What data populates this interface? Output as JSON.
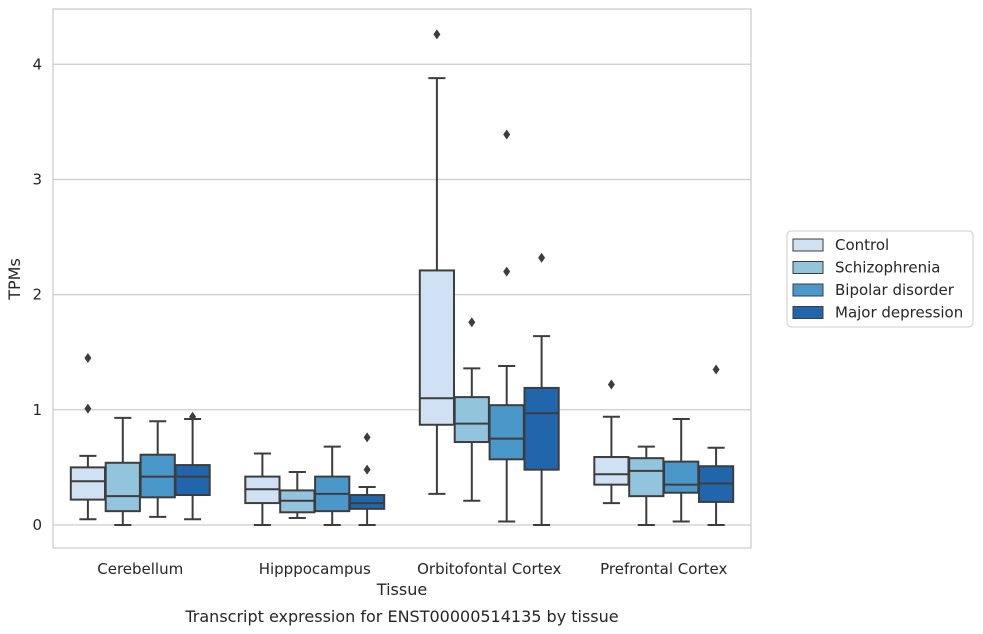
{
  "chart_data": {
    "type": "boxplot",
    "title": "",
    "caption": "Transcript expression for ENST00000514135 by tissue",
    "xlabel": "Tissue",
    "ylabel": "TPMs",
    "ylim": [
      -0.2,
      4.48
    ],
    "yticks": [
      0,
      1,
      2,
      3,
      4
    ],
    "grid": "horizontal",
    "legend_position": "right-outside",
    "categories": [
      "Cerebellum",
      "Hipppocampus",
      "Orbitofontal Cortex",
      "Prefrontal Cortex"
    ],
    "series": [
      {
        "name": "Control",
        "color": "#cfe1f2",
        "boxes": [
          {
            "whislo": 0.05,
            "q1": 0.22,
            "med": 0.38,
            "q3": 0.5,
            "whishi": 0.6,
            "fliers": [
              1.01,
              1.45
            ]
          },
          {
            "whislo": 0.0,
            "q1": 0.19,
            "med": 0.31,
            "q3": 0.42,
            "whishi": 0.62,
            "fliers": []
          },
          {
            "whislo": 0.27,
            "q1": 0.87,
            "med": 1.1,
            "q3": 2.21,
            "whishi": 3.88,
            "fliers": [
              4.26
            ]
          },
          {
            "whislo": 0.19,
            "q1": 0.35,
            "med": 0.44,
            "q3": 0.59,
            "whishi": 0.94,
            "fliers": [
              1.22
            ]
          }
        ]
      },
      {
        "name": "Schizophrenia",
        "color": "#93c4de",
        "boxes": [
          {
            "whislo": 0.0,
            "q1": 0.12,
            "med": 0.25,
            "q3": 0.54,
            "whishi": 0.93,
            "fliers": []
          },
          {
            "whislo": 0.06,
            "q1": 0.11,
            "med": 0.21,
            "q3": 0.3,
            "whishi": 0.46,
            "fliers": []
          },
          {
            "whislo": 0.21,
            "q1": 0.72,
            "med": 0.88,
            "q3": 1.11,
            "whishi": 1.36,
            "fliers": [
              1.76
            ]
          },
          {
            "whislo": 0.0,
            "q1": 0.25,
            "med": 0.47,
            "q3": 0.58,
            "whishi": 0.68,
            "fliers": []
          }
        ]
      },
      {
        "name": "Bipolar disorder",
        "color": "#4a98c9",
        "boxes": [
          {
            "whislo": 0.07,
            "q1": 0.24,
            "med": 0.42,
            "q3": 0.61,
            "whishi": 0.9,
            "fliers": []
          },
          {
            "whislo": 0.0,
            "q1": 0.12,
            "med": 0.27,
            "q3": 0.42,
            "whishi": 0.68,
            "fliers": []
          },
          {
            "whislo": 0.03,
            "q1": 0.57,
            "med": 0.75,
            "q3": 1.04,
            "whishi": 1.38,
            "fliers": [
              2.2,
              3.39
            ]
          },
          {
            "whislo": 0.03,
            "q1": 0.28,
            "med": 0.35,
            "q3": 0.55,
            "whishi": 0.92,
            "fliers": []
          }
        ]
      },
      {
        "name": "Major depression",
        "color": "#2166ac",
        "boxes": [
          {
            "whislo": 0.05,
            "q1": 0.26,
            "med": 0.42,
            "q3": 0.52,
            "whishi": 0.92,
            "fliers": [
              0.94
            ]
          },
          {
            "whislo": 0.0,
            "q1": 0.14,
            "med": 0.19,
            "q3": 0.26,
            "whishi": 0.33,
            "fliers": [
              0.48,
              0.76
            ]
          },
          {
            "whislo": 0.0,
            "q1": 0.48,
            "med": 0.97,
            "q3": 1.19,
            "whishi": 1.64,
            "fliers": [
              2.32
            ]
          },
          {
            "whislo": 0.0,
            "q1": 0.2,
            "med": 0.36,
            "q3": 0.51,
            "whishi": 0.67,
            "fliers": [
              1.35
            ]
          }
        ]
      }
    ]
  }
}
